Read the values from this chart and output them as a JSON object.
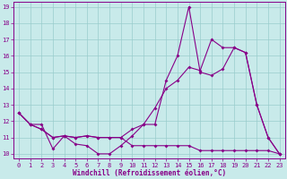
{
  "background_color": "#c8eaea",
  "line_color": "#880088",
  "grid_color": "#99cccc",
  "xlabel": "Windchill (Refroidissement éolien,°C)",
  "xlim": [
    -0.5,
    23.5
  ],
  "ylim": [
    9.7,
    19.3
  ],
  "yticks": [
    10,
    11,
    12,
    13,
    14,
    15,
    16,
    17,
    18,
    19
  ],
  "xticks": [
    0,
    1,
    2,
    3,
    4,
    5,
    6,
    7,
    8,
    9,
    10,
    11,
    12,
    13,
    14,
    15,
    16,
    17,
    18,
    19,
    20,
    21,
    22,
    23
  ],
  "series": [
    [
      12.5,
      11.8,
      11.8,
      10.3,
      11.1,
      10.6,
      10.5,
      10.0,
      10.0,
      10.5,
      11.1,
      11.8,
      11.8,
      14.5,
      16.0,
      19.0,
      15.0,
      14.8,
      15.2,
      16.5,
      16.2,
      13.0,
      11.0,
      10.0
    ],
    [
      12.5,
      11.8,
      11.5,
      11.0,
      11.1,
      11.0,
      11.1,
      11.0,
      11.0,
      11.0,
      11.5,
      11.8,
      12.8,
      14.0,
      14.5,
      15.3,
      15.1,
      17.0,
      16.5,
      16.5,
      16.2,
      13.0,
      11.0,
      10.0
    ],
    [
      12.5,
      11.8,
      11.5,
      11.0,
      11.1,
      11.0,
      11.1,
      11.0,
      11.0,
      11.0,
      10.5,
      10.5,
      10.5,
      10.5,
      10.5,
      10.5,
      10.2,
      10.2,
      10.2,
      10.2,
      10.2,
      10.2,
      10.2,
      10.0
    ]
  ],
  "markersize": 2.0,
  "linewidth": 0.8,
  "tick_fontsize": 5.0,
  "xlabel_fontsize": 5.5
}
